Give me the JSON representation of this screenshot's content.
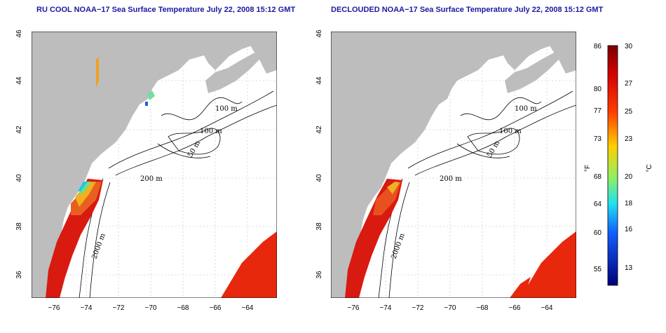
{
  "panels": [
    {
      "title": "RU COOL NOAA−17 Sea Surface Temperature July 22, 2008 15:12 GMT"
    },
    {
      "title": "DECLOUDED NOAA−17 Sea Surface Temperature July 22, 2008 15:12 GMT"
    }
  ],
  "axes": {
    "lon_ticks": [
      "−76",
      "−74",
      "−72",
      "−70",
      "−68",
      "−66",
      "−64"
    ],
    "lat_ticks": [
      "36",
      "38",
      "40",
      "42",
      "44",
      "46"
    ]
  },
  "contour_labels": [
    "100 m",
    "100 m",
    "50 m",
    "200 m",
    "2000 m",
    "50 m"
  ],
  "colorbar": {
    "unit_f": "°F",
    "unit_c": "°C",
    "f_ticks": [
      "86",
      "80",
      "77",
      "73",
      "68",
      "64",
      "60",
      "55"
    ],
    "c_ticks": [
      "30",
      "27",
      "25",
      "23",
      "20",
      "18",
      "16",
      "13"
    ]
  },
  "colors": {
    "land": "#bdbdbd",
    "title": "#1a1aa0",
    "sst_warm": "#e8200c",
    "sst_cool": "#1ec8e8"
  }
}
